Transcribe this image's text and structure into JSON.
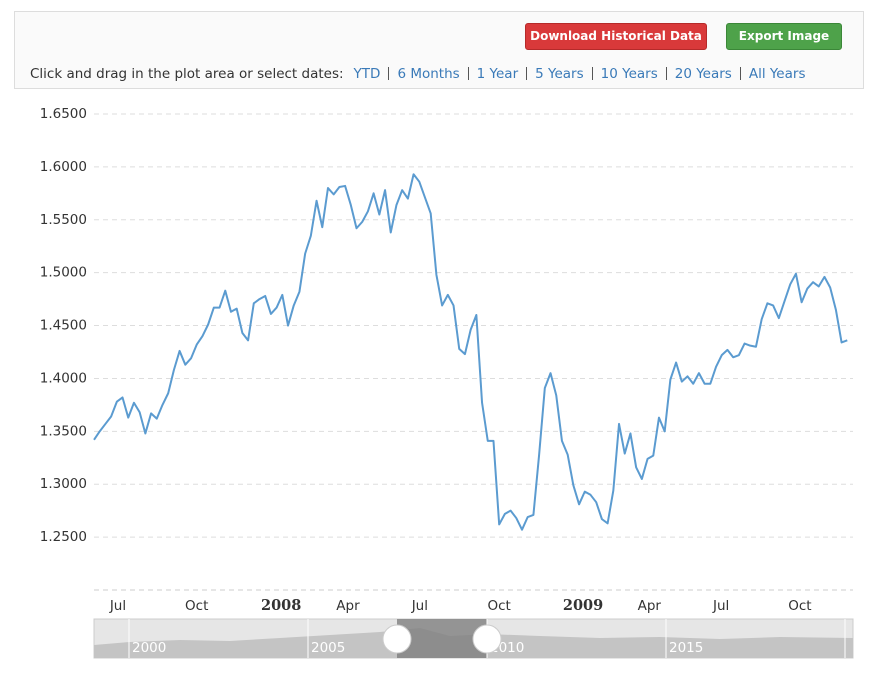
{
  "header": {
    "buttons": [
      "Download Historical Data",
      "Export Image"
    ],
    "prompt": "Click and drag in the plot area or select dates:",
    "ranges": [
      "YTD",
      "6 Months",
      "1 Year",
      "5 Years",
      "10 Years",
      "20 Years",
      "All Years"
    ]
  },
  "chart_data": {
    "type": "line",
    "color": "#5b9bd0",
    "grid": true,
    "values": [
      1.342,
      1.35,
      1.357,
      1.364,
      1.378,
      1.382,
      1.363,
      1.377,
      1.368,
      1.348,
      1.367,
      1.362,
      1.375,
      1.386,
      1.408,
      1.426,
      1.413,
      1.419,
      1.432,
      1.44,
      1.451,
      1.467,
      1.467,
      1.483,
      1.463,
      1.466,
      1.443,
      1.436,
      1.471,
      1.475,
      1.478,
      1.461,
      1.467,
      1.479,
      1.45,
      1.469,
      1.482,
      1.518,
      1.535,
      1.568,
      1.543,
      1.58,
      1.574,
      1.581,
      1.582,
      1.564,
      1.542,
      1.548,
      1.558,
      1.575,
      1.555,
      1.578,
      1.538,
      1.564,
      1.578,
      1.57,
      1.593,
      1.586,
      1.571,
      1.556,
      1.498,
      1.469,
      1.479,
      1.469,
      1.428,
      1.423,
      1.446,
      1.46,
      1.377,
      1.341,
      1.341,
      1.262,
      1.272,
      1.275,
      1.268,
      1.257,
      1.269,
      1.271,
      1.328,
      1.391,
      1.405,
      1.384,
      1.341,
      1.328,
      1.299,
      1.281,
      1.293,
      1.29,
      1.283,
      1.267,
      1.263,
      1.294,
      1.357,
      1.329,
      1.348,
      1.316,
      1.305,
      1.324,
      1.327,
      1.363,
      1.35,
      1.399,
      1.415,
      1.397,
      1.402,
      1.395,
      1.405,
      1.395,
      1.395,
      1.411,
      1.422,
      1.427,
      1.42,
      1.422,
      1.433,
      1.431,
      1.43,
      1.456,
      1.471,
      1.469,
      1.457,
      1.473,
      1.489,
      1.499,
      1.472,
      1.485,
      1.491,
      1.487,
      1.496,
      1.486,
      1.465,
      1.434,
      1.436
    ],
    "xlim": [
      0,
      133
    ],
    "xticks": [
      {
        "value": 4.2,
        "label": "Jul"
      },
      {
        "value": 18,
        "label": "Oct"
      },
      {
        "value": 32.8,
        "label": "2008"
      },
      {
        "value": 44.5,
        "label": "Apr"
      },
      {
        "value": 57.1,
        "label": "Jul"
      },
      {
        "value": 71,
        "label": "Oct"
      },
      {
        "value": 85.7,
        "label": "2009"
      },
      {
        "value": 97.3,
        "label": "Apr"
      },
      {
        "value": 109.9,
        "label": "Jul"
      },
      {
        "value": 123.7,
        "label": "Oct"
      }
    ],
    "ylim": [
      1.2,
      1.65
    ],
    "yticks": [
      {
        "value": 1.25,
        "label": "1.2500"
      },
      {
        "value": 1.3,
        "label": "1.3000"
      },
      {
        "value": 1.35,
        "label": "1.3500"
      },
      {
        "value": 1.4,
        "label": "1.4000"
      },
      {
        "value": 1.45,
        "label": "1.4500"
      },
      {
        "value": 1.5,
        "label": "1.5000"
      },
      {
        "value": 1.55,
        "label": "1.5500"
      },
      {
        "value": 1.6,
        "label": "1.6000"
      },
      {
        "value": 1.65,
        "label": "1.6500"
      }
    ]
  },
  "navigator": {
    "labels": [
      "2000",
      "2005",
      "2010",
      "2015"
    ]
  }
}
